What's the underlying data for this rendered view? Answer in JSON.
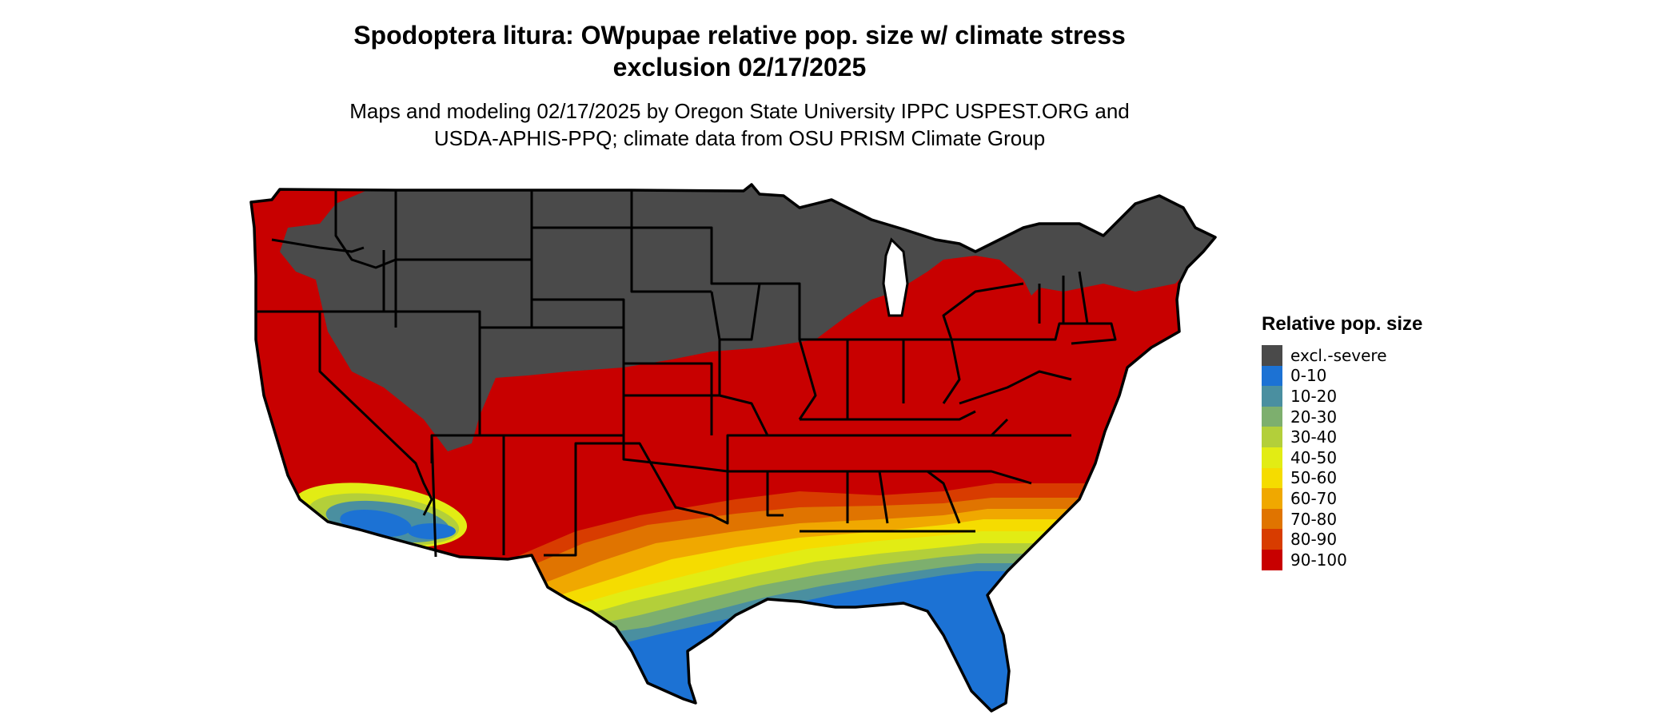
{
  "title": {
    "line1": "Spodoptera litura: OWpupae relative pop. size w/ climate stress",
    "line2": "exclusion 02/17/2025"
  },
  "subtitle": {
    "line1": "Maps and modeling 02/17/2025 by Oregon State University IPPC USPEST.ORG and",
    "line2": "USDA-APHIS-PPQ; climate data from OSU PRISM Climate Group"
  },
  "legend": {
    "title": "Relative pop. size",
    "items": [
      {
        "label": "excl.-severe",
        "color": "#4a4a4a"
      },
      {
        "label": "0-10",
        "color": "#1c72d4"
      },
      {
        "label": "10-20",
        "color": "#4a8fa0"
      },
      {
        "label": "20-30",
        "color": "#7daf6e"
      },
      {
        "label": "30-40",
        "color": "#b3cf3a"
      },
      {
        "label": "40-50",
        "color": "#e2ec14"
      },
      {
        "label": "50-60",
        "color": "#f5dc00"
      },
      {
        "label": "60-70",
        "color": "#f0a800"
      },
      {
        "label": "70-80",
        "color": "#e07400"
      },
      {
        "label": "80-90",
        "color": "#d83c00"
      },
      {
        "label": "90-100",
        "color": "#c80000"
      }
    ]
  }
}
